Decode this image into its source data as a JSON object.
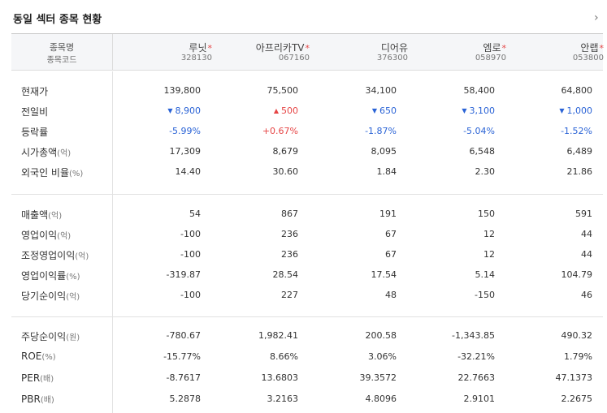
{
  "title": "동일 섹터 종목 현황",
  "more_icon": "›",
  "header": {
    "label_line1": "종목명",
    "label_line2": "종목코드",
    "stocks": [
      {
        "name": "루닛",
        "star": "*",
        "code": "328130"
      },
      {
        "name": "아프리카TV",
        "star": "*",
        "code": "067160"
      },
      {
        "name": "디어유",
        "star": "",
        "code": "376300"
      },
      {
        "name": "엠로",
        "star": "*",
        "code": "058970"
      },
      {
        "name": "안랩",
        "star": "*",
        "code": "053800"
      }
    ]
  },
  "sections": [
    {
      "rows": [
        {
          "label": "현재가",
          "unit": "",
          "values": [
            "139,800",
            "75,500",
            "34,100",
            "58,400",
            "64,800"
          ]
        },
        {
          "label": "전일비",
          "unit": "",
          "values": [
            "8,900",
            "500",
            "650",
            "3,100",
            "1,000"
          ],
          "directions": [
            "down",
            "up",
            "down",
            "down",
            "down"
          ]
        },
        {
          "label": "등락률",
          "unit": "",
          "values": [
            "-5.99%",
            "+0.67%",
            "-1.87%",
            "-5.04%",
            "-1.52%"
          ],
          "directions": [
            "down",
            "up",
            "down",
            "down",
            "down"
          ]
        },
        {
          "label": "시가총액",
          "unit": "(억)",
          "values": [
            "17,309",
            "8,679",
            "8,095",
            "6,548",
            "6,489"
          ]
        },
        {
          "label": "외국인 비율",
          "unit": "(%)",
          "values": [
            "14.40",
            "30.60",
            "1.84",
            "2.30",
            "21.86"
          ]
        }
      ]
    },
    {
      "rows": [
        {
          "label": "매출액",
          "unit": "(억)",
          "values": [
            "54",
            "867",
            "191",
            "150",
            "591"
          ]
        },
        {
          "label": "영업이익",
          "unit": "(억)",
          "values": [
            "-100",
            "236",
            "67",
            "12",
            "44"
          ]
        },
        {
          "label": "조정영업이익",
          "unit": "(억)",
          "values": [
            "-100",
            "236",
            "67",
            "12",
            "44"
          ]
        },
        {
          "label": "영업이익률",
          "unit": "(%)",
          "values": [
            "-319.87",
            "28.54",
            "17.54",
            "5.14",
            "104.79"
          ]
        },
        {
          "label": "당기순이익",
          "unit": "(억)",
          "values": [
            "-100",
            "227",
            "48",
            "-150",
            "46"
          ]
        }
      ]
    },
    {
      "rows": [
        {
          "label": "주당순이익",
          "unit": "(원)",
          "values": [
            "-780.67",
            "1,982.41",
            "200.58",
            "-1,343.85",
            "490.32"
          ]
        },
        {
          "label": "ROE",
          "unit": "(%)",
          "values": [
            "-15.77%",
            "8.66%",
            "3.06%",
            "-32.21%",
            "1.79%"
          ]
        },
        {
          "label": "PER",
          "unit": "(배)",
          "values": [
            "-8.7617",
            "13.6803",
            "39.3572",
            "22.7663",
            "47.1373"
          ]
        },
        {
          "label": "PBR",
          "unit": "(배)",
          "values": [
            "5.2878",
            "3.2163",
            "4.8096",
            "2.9101",
            "2.2675"
          ]
        }
      ]
    }
  ],
  "colors": {
    "down": "#2a63d6",
    "up": "#e64545",
    "star": "#e64545"
  },
  "arrows": {
    "down": "▼",
    "up": "▲"
  }
}
